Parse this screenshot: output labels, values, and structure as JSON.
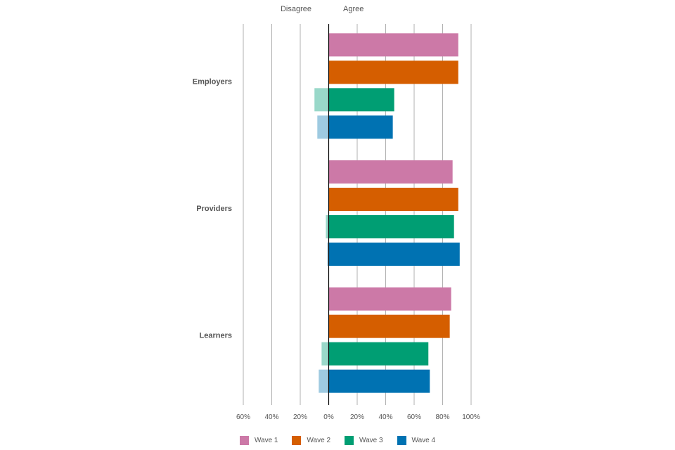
{
  "chart_data": {
    "type": "bar",
    "orientation": "horizontal-diverging",
    "header_left": "Disagree",
    "header_right": "Agree",
    "categories": [
      "Employers",
      "Providers",
      "Learners"
    ],
    "series": [
      {
        "name": "Wave 1",
        "color": "#cc79a7",
        "disagree_color": "#cc79a7",
        "agree": [
          91,
          87,
          86
        ],
        "disagree": [
          0,
          0,
          0
        ]
      },
      {
        "name": "Wave 2",
        "color": "#d55e00",
        "disagree_color": "#d55e00",
        "agree": [
          91,
          91,
          85
        ],
        "disagree": [
          0,
          0,
          0
        ]
      },
      {
        "name": "Wave 3",
        "color": "#009e73",
        "disagree_color": "#99d8c9",
        "agree": [
          46,
          88,
          70
        ],
        "disagree": [
          10,
          2,
          5
        ]
      },
      {
        "name": "Wave 4",
        "color": "#0072b2",
        "disagree_color": "#9ecae1",
        "agree": [
          45,
          92,
          71
        ],
        "disagree": [
          8,
          1,
          7
        ]
      }
    ],
    "x_ticks": [
      "60%",
      "40%",
      "20%",
      "0%",
      "20%",
      "40%",
      "60%",
      "80%",
      "100%"
    ],
    "xlim": [
      -60,
      100
    ],
    "grid": true,
    "legend_position": "bottom"
  }
}
